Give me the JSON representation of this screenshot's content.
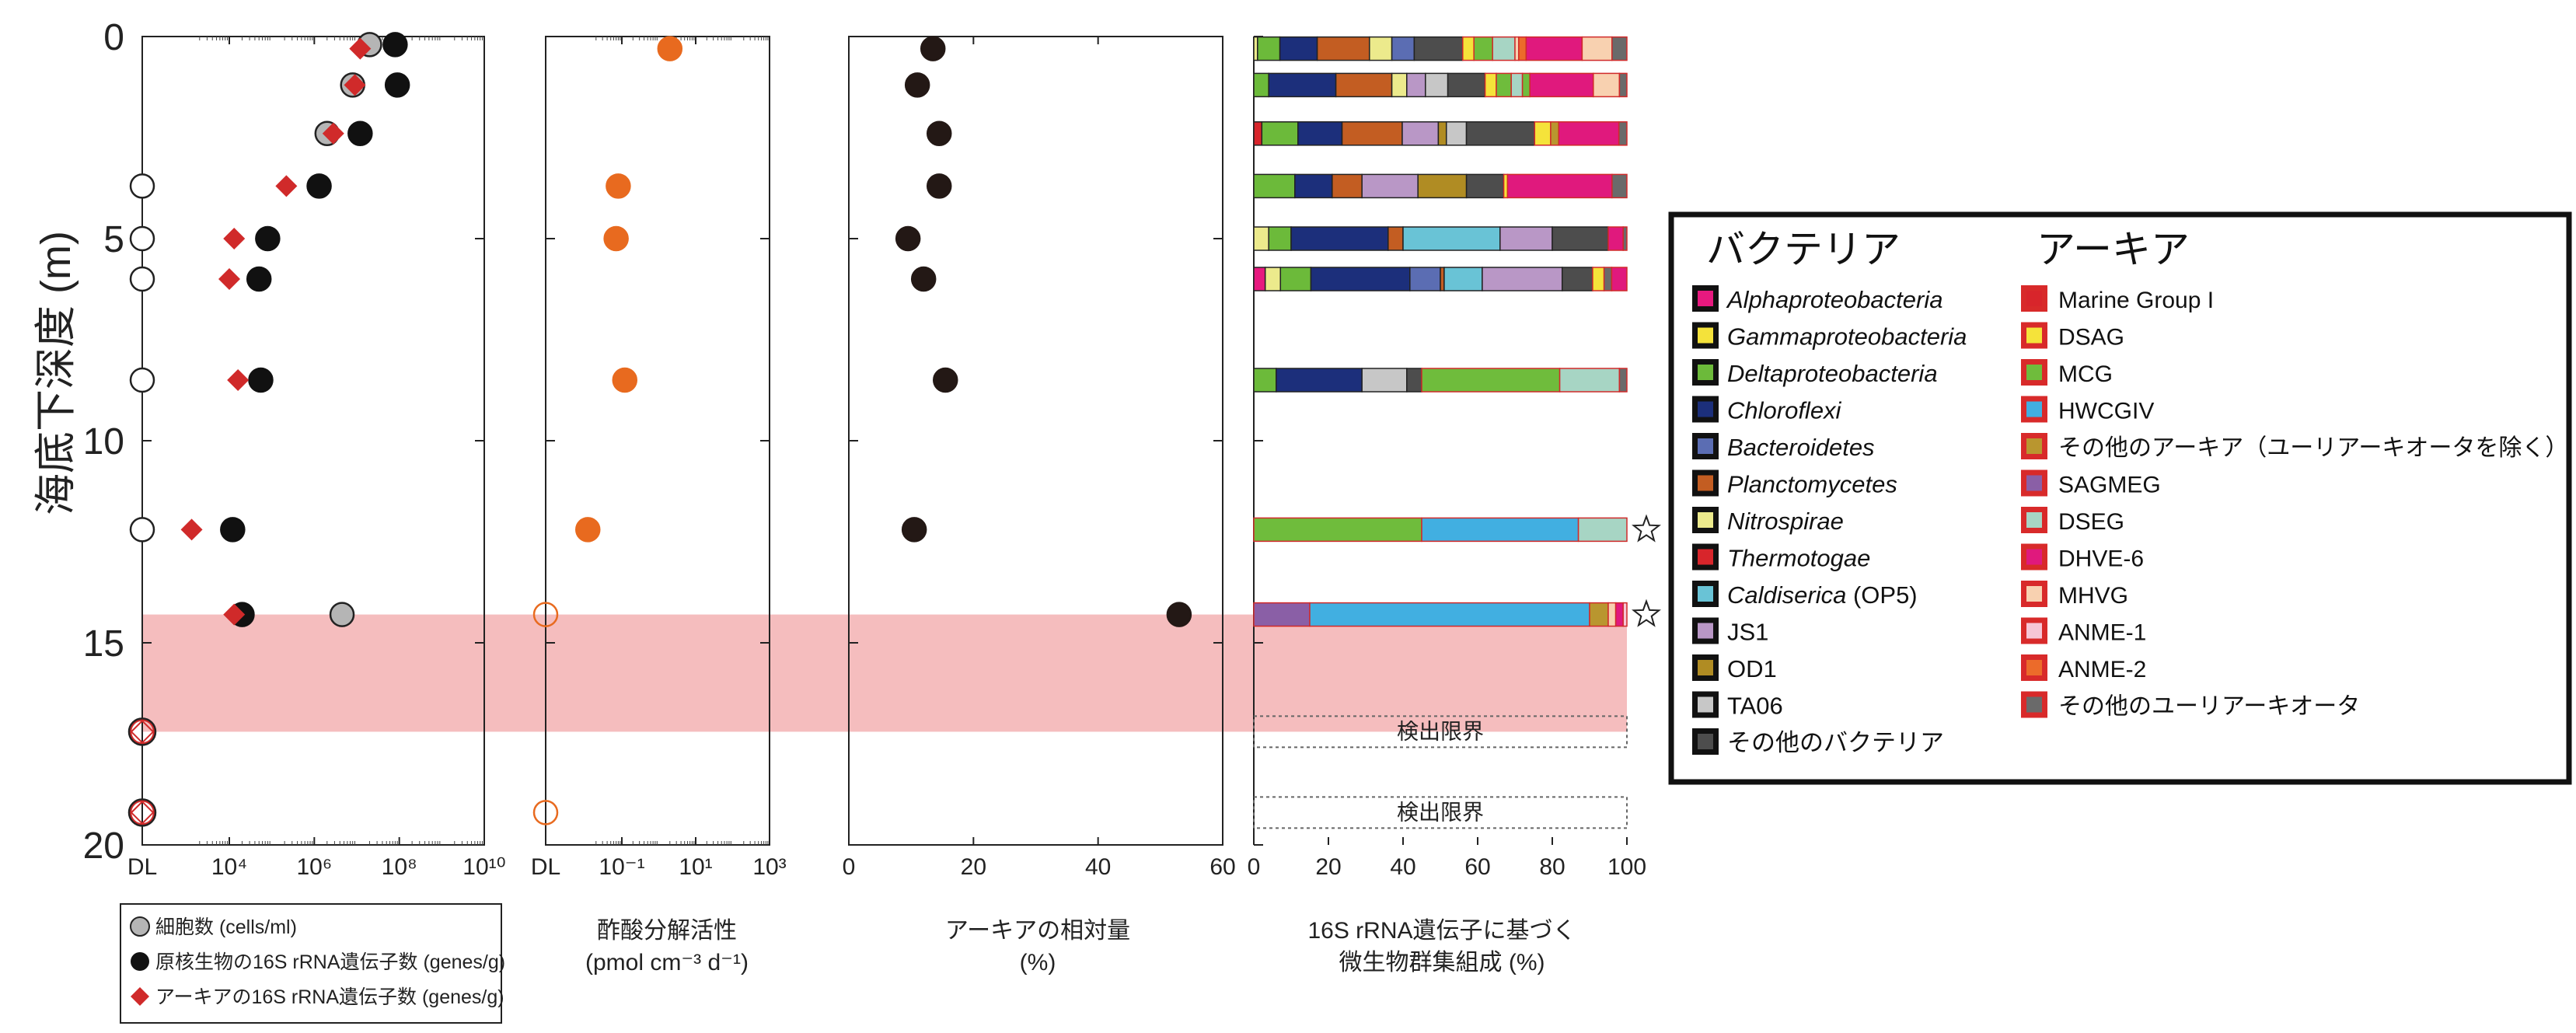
{
  "chart_data": {
    "type": "scatter",
    "y_axis": {
      "label": "海底下深度 (m)",
      "ticks": [
        "0",
        "5",
        "10",
        "15",
        "20"
      ],
      "ylim": [
        0,
        20
      ],
      "inverted": true
    },
    "highlight_band": {
      "y_from": 14.3,
      "y_to": 17.2,
      "color": "#f4b9bb"
    },
    "panels": [
      {
        "id": "abundance",
        "type": "scatter",
        "x_scale": "log",
        "xlabel": "",
        "x_ticks": [
          "DL",
          "10⁴",
          "10⁶",
          "10⁸",
          "10¹⁰"
        ],
        "series": [
          {
            "name": "細胞数 (cells/ml)",
            "marker": "gray-circle",
            "points": [
              {
                "depth": 0.2,
                "x": "2e7"
              },
              {
                "depth": 1.2,
                "x": "8e6"
              },
              {
                "depth": 2.4,
                "x": "2e6"
              },
              {
                "depth": 14.3,
                "x": "4.5e6"
              }
            ]
          },
          {
            "name": "原核生物の16S rRNA遺伝子数 (genes/g)",
            "marker": "black-circle",
            "points": [
              {
                "depth": 0.2,
                "x": "8e7"
              },
              {
                "depth": 1.2,
                "x": "9e7"
              },
              {
                "depth": 2.4,
                "x": "1.2e7"
              },
              {
                "depth": 3.7,
                "x": "1.3e6"
              },
              {
                "depth": 5.0,
                "x": "8e4"
              },
              {
                "depth": 6.0,
                "x": "5e4"
              },
              {
                "depth": 8.5,
                "x": "5.5e4"
              },
              {
                "depth": 12.2,
                "x": "1.2e4"
              },
              {
                "depth": 14.3,
                "x": "2e4"
              }
            ]
          },
          {
            "name": "アーキアの16S rRNA遺伝子数 (genes/g)",
            "marker": "red-diamond",
            "points": [
              {
                "depth": 0.3,
                "x": "1.2e7"
              },
              {
                "depth": 1.2,
                "x": "9e6"
              },
              {
                "depth": 2.4,
                "x": "2.8e6"
              },
              {
                "depth": 3.7,
                "x": "2.2e5"
              },
              {
                "depth": 5.0,
                "x": "1.3e4"
              },
              {
                "depth": 6.0,
                "x": "1.0e4"
              },
              {
                "depth": 8.5,
                "x": "1.6e4"
              },
              {
                "depth": 12.2,
                "x": "1.3e3"
              },
              {
                "depth": 14.3,
                "x": "1.3e4"
              }
            ]
          },
          {
            "name": "DL (検出限界)",
            "marker": "open-circle",
            "points": [
              {
                "depth": 3.7,
                "x": "DL"
              },
              {
                "depth": 5.0,
                "x": "DL"
              },
              {
                "depth": 6.0,
                "x": "DL"
              },
              {
                "depth": 8.5,
                "x": "DL"
              },
              {
                "depth": 12.2,
                "x": "DL"
              },
              {
                "depth": 17.2,
                "x": "DL"
              },
              {
                "depth": 19.2,
                "x": "DL"
              }
            ]
          }
        ],
        "legend": [
          {
            "marker": "gray-circle",
            "label": "細胞数 (cells/ml)"
          },
          {
            "marker": "black-circle",
            "label": "原核生物の16S rRNA遺伝子数 (genes/g)"
          },
          {
            "marker": "red-diamond",
            "label": "アーキアの16S rRNA遺伝子数 (genes/g)"
          }
        ]
      },
      {
        "id": "acetate",
        "type": "scatter",
        "x_scale": "log",
        "xlabel": "酢酸分解活性",
        "xlabel2": "(pmol cm⁻³ d⁻¹)",
        "x_ticks": [
          "DL",
          "10⁻¹",
          "10¹",
          "10³"
        ],
        "points": [
          {
            "depth": 0.3,
            "x": "2"
          },
          {
            "depth": 3.7,
            "x": "0.08"
          },
          {
            "depth": 5.0,
            "x": "0.07"
          },
          {
            "depth": 8.5,
            "x": "0.12"
          },
          {
            "depth": 12.2,
            "x": "0.012"
          }
        ],
        "dl_points": [
          {
            "depth": 14.3
          },
          {
            "depth": 19.2
          }
        ]
      },
      {
        "id": "archaea_ratio",
        "type": "scatter",
        "xlabel": "アーキアの相対量",
        "xlabel2": "(%)",
        "x_ticks": [
          "0",
          "20",
          "40",
          "60"
        ],
        "xlim": [
          0,
          60
        ],
        "points": [
          {
            "depth": 0.3,
            "x": 13.5
          },
          {
            "depth": 1.2,
            "x": 11
          },
          {
            "depth": 2.4,
            "x": 14.5
          },
          {
            "depth": 3.7,
            "x": 14.5
          },
          {
            "depth": 5.0,
            "x": 9.5
          },
          {
            "depth": 6.0,
            "x": 12
          },
          {
            "depth": 8.5,
            "x": 15.5
          },
          {
            "depth": 12.2,
            "x": 10.5
          },
          {
            "depth": 14.3,
            "x": 53
          }
        ]
      },
      {
        "id": "community",
        "type": "bar",
        "xlabel": "16S rRNA遺伝子に基づく",
        "xlabel2": "微生物群集組成 (%)",
        "x_ticks": [
          "0",
          "20",
          "40",
          "60",
          "80",
          "100"
        ],
        "xlim": [
          0,
          100
        ],
        "detection_limit_label": "検出限界",
        "detection_limit_depths": [
          17.2,
          19.2
        ],
        "star_depths": [
          12.2,
          14.3
        ],
        "bars": [
          {
            "depth": 0.3,
            "segments": [
              [
                "Nitrospirae",
                1
              ],
              [
                "Deltaproteobacteria",
                6
              ],
              [
                "Chloroflexi",
                10
              ],
              [
                "Planctomycetes",
                14
              ],
              [
                "Nitrospirae",
                6
              ],
              [
                "Bacteroidetes",
                6
              ],
              [
                "その他のバクテリア",
                13
              ],
              [
                "DSAG",
                3
              ],
              [
                "MCG",
                5
              ],
              [
                "DSEG",
                6
              ],
              [
                "MHVG",
                1
              ],
              [
                "ANME-2",
                2
              ],
              [
                "DHVE-6",
                15
              ],
              [
                "MHVG",
                8
              ],
              [
                "その他のユーリアーキオータ",
                4
              ]
            ]
          },
          {
            "depth": 1.2,
            "segments": [
              [
                "Deltaproteobacteria",
                4
              ],
              [
                "Chloroflexi",
                18
              ],
              [
                "Planctomycetes",
                15
              ],
              [
                "Nitrospirae",
                4
              ],
              [
                "JS1",
                5
              ],
              [
                "TA06",
                6
              ],
              [
                "その他のバクテリア",
                10
              ],
              [
                "DSAG",
                3
              ],
              [
                "MCG",
                4
              ],
              [
                "DSEG",
                3
              ],
              [
                "MCG",
                2
              ],
              [
                "DHVE-6",
                17
              ],
              [
                "MHVG",
                7
              ],
              [
                "その他のユーリアーキオータ",
                2
              ]
            ]
          },
          {
            "depth": 2.4,
            "segments": [
              [
                "Thermotogae",
                2
              ],
              [
                "Deltaproteobacteria",
                9
              ],
              [
                "Chloroflexi",
                11
              ],
              [
                "Planctomycetes",
                15
              ],
              [
                "JS1",
                9
              ],
              [
                "OD1",
                2
              ],
              [
                "TA06",
                5
              ],
              [
                "その他のバクテリア",
                17
              ],
              [
                "DSAG",
                4
              ],
              [
                "その他のアーキア",
                2
              ],
              [
                "DHVE-6",
                15
              ],
              [
                "その他のユーリアーキオータ",
                2
              ]
            ]
          },
          {
            "depth": 3.7,
            "segments": [
              [
                "Deltaproteobacteria",
                11
              ],
              [
                "Chloroflexi",
                10
              ],
              [
                "Planctomycetes",
                8
              ],
              [
                "JS1",
                15
              ],
              [
                "OD1",
                13
              ],
              [
                "その他のバクテリア",
                10
              ],
              [
                "DSAG",
                1
              ],
              [
                "DHVE-6",
                28
              ],
              [
                "その他のユーリアーキオータ",
                4
              ]
            ]
          },
          {
            "depth": 5.0,
            "segments": [
              [
                "Nitrospirae",
                4
              ],
              [
                "Deltaproteobacteria",
                6
              ],
              [
                "Chloroflexi",
                26
              ],
              [
                "Planctomycetes",
                4
              ],
              [
                "Caldiserica (OP5)",
                26
              ],
              [
                "JS1",
                14
              ],
              [
                "その他のバクテリア",
                15
              ],
              [
                "DHVE-6",
                4
              ],
              [
                "その他のユーリアーキオータ",
                1
              ]
            ]
          },
          {
            "depth": 6.0,
            "segments": [
              [
                "Alphaproteobacteria",
                3
              ],
              [
                "Nitrospirae",
                4
              ],
              [
                "Deltaproteobacteria",
                8
              ],
              [
                "Chloroflexi",
                26
              ],
              [
                "Bacteroidetes",
                8
              ],
              [
                "Planctomycetes",
                1
              ],
              [
                "Caldiserica (OP5)",
                10
              ],
              [
                "JS1",
                21
              ],
              [
                "その他のバクテリア",
                8
              ],
              [
                "DSAG",
                3
              ],
              [
                "その他のユーリアーキオータ",
                2
              ],
              [
                "DHVE-6",
                4
              ]
            ]
          },
          {
            "depth": 8.5,
            "segments": [
              [
                "Deltaproteobacteria",
                6
              ],
              [
                "Chloroflexi",
                23
              ],
              [
                "TA06",
                12
              ],
              [
                "その他のバクテリア",
                4
              ],
              [
                "MCG",
                37
              ],
              [
                "DSEG",
                16
              ],
              [
                "その他のユーリアーキオータ",
                2
              ]
            ]
          },
          {
            "depth": 12.2,
            "segments": [
              [
                "MCG",
                45
              ],
              [
                "HWCGIV",
                42
              ],
              [
                "DSEG",
                13
              ]
            ]
          },
          {
            "depth": 14.3,
            "segments": [
              [
                "SAGMEG",
                15
              ],
              [
                "HWCGIV",
                75
              ],
              [
                "その他のアーキア",
                5
              ],
              [
                "MHVG",
                2
              ],
              [
                "DHVE-6",
                2
              ],
              [
                "ANME-1",
                1
              ]
            ]
          }
        ]
      }
    ],
    "legend": {
      "bacteria_title": "バクテリア",
      "archaea_title": "アーキア",
      "bacteria": [
        {
          "label": "Alphaproteobacteria",
          "italic": true,
          "color": "#e7197f"
        },
        {
          "label": "Gammaproteobacteria",
          "italic": true,
          "color": "#f4e23a"
        },
        {
          "label": "Deltaproteobacteria",
          "italic": true,
          "color": "#6cba3a"
        },
        {
          "label": "Chloroflexi",
          "italic": true,
          "color": "#1c2f7b"
        },
        {
          "label": "Bacteroidetes",
          "italic": true,
          "color": "#5b6db3"
        },
        {
          "label": "Planctomycetes",
          "italic": true,
          "color": "#c35d22"
        },
        {
          "label": "Nitrospirae",
          "italic": true,
          "color": "#ecea8c"
        },
        {
          "label": "Thermotogae",
          "italic": true,
          "color": "#d8252b"
        },
        {
          "label": "Caldiserica",
          "italic": true,
          "suffix": " (OP5)",
          "color": "#69c3d6"
        },
        {
          "label": "JS1",
          "italic": false,
          "color": "#b997c6"
        },
        {
          "label": "OD1",
          "italic": false,
          "color": "#b08c23"
        },
        {
          "label": "TA06",
          "italic": false,
          "color": "#c7c7c7"
        },
        {
          "label": "その他のバクテリア",
          "italic": false,
          "color": "#4d4d4d"
        }
      ],
      "archaea": [
        {
          "label": "Marine Group I",
          "color": "#d8252b"
        },
        {
          "label": "DSAG",
          "color": "#f5e33a"
        },
        {
          "label": "MCG",
          "color": "#6fbc3c"
        },
        {
          "label": "HWCGIV",
          "color": "#41afe1"
        },
        {
          "label": "その他のアーキア（ユーリアーキオータを除く）",
          "color": "#b9962f"
        },
        {
          "label": "SAGMEG",
          "color": "#8a5fa6"
        },
        {
          "label": "DSEG",
          "color": "#a7d5c4"
        },
        {
          "label": "DHVE-6",
          "color": "#e0197d"
        },
        {
          "label": "MHVG",
          "color": "#f8d1b0"
        },
        {
          "label": "ANME-1",
          "color": "#f6c6d6"
        },
        {
          "label": "ANME-2",
          "color": "#ec6b2a"
        },
        {
          "label": "その他のユーリアーキオータ",
          "color": "#6a6a6a"
        }
      ]
    }
  }
}
